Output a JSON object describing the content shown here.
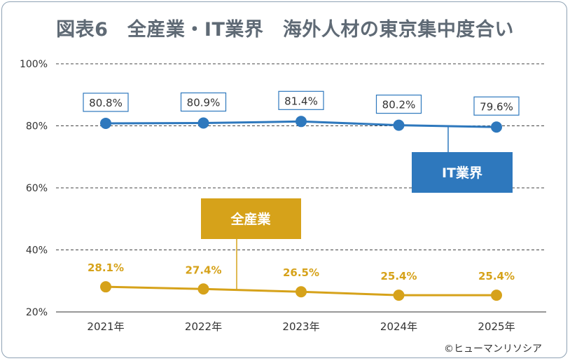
{
  "title": "図表6　全産業・IT業界　海外人材の東京集中度合い",
  "copyright": "©ヒューマンリソシア",
  "colors": {
    "it_series": "#2e78bd",
    "all_series": "#d6a21a",
    "grid": "#444444",
    "axis": "#777777",
    "text": "#333333",
    "it_label_border": "#2e78bd"
  },
  "chart_data": {
    "type": "line",
    "title": "図表6　全産業・IT業界　海外人材の東京集中度合い",
    "categories": [
      "2021年",
      "2022年",
      "2023年",
      "2024年",
      "2025年"
    ],
    "yticks": [
      "100%",
      "80%",
      "60%",
      "40%",
      "20%"
    ],
    "ytick_values": [
      100,
      80,
      60,
      40,
      20
    ],
    "ylim": [
      20,
      100
    ],
    "grid": true,
    "series": [
      {
        "name": "IT業界",
        "values": [
          80.8,
          80.9,
          81.4,
          80.2,
          79.6
        ],
        "labels": [
          "80.8%",
          "80.9%",
          "81.4%",
          "80.2%",
          "79.6%"
        ]
      },
      {
        "name": "全産業",
        "values": [
          28.1,
          27.4,
          26.5,
          25.4,
          25.4
        ],
        "labels": [
          "28.1%",
          "27.4%",
          "26.5%",
          "25.4%",
          "25.4%"
        ]
      }
    ]
  }
}
